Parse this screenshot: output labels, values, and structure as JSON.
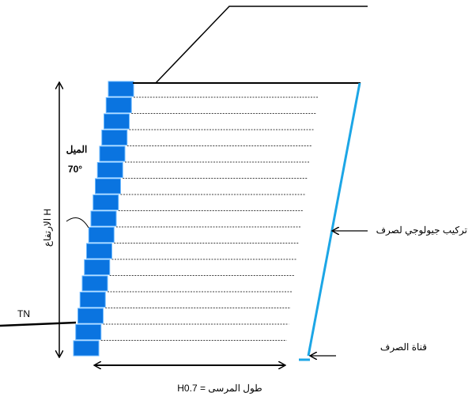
{
  "labels": {
    "slope": "الميل",
    "angle": "70°",
    "height": "H الارتفاع",
    "ground": "TN",
    "drain_layer": "تركيب جيولوجي لصرف",
    "drain_channel": "قناة الصرف",
    "anchor_length": "طول المرسى = H0.7"
  }
}
